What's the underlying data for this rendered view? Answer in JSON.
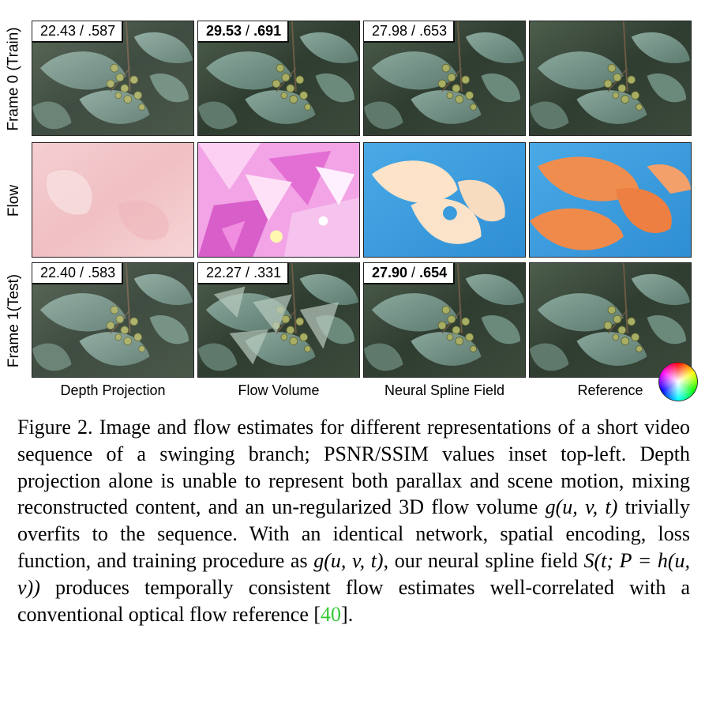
{
  "rows": [
    {
      "label": "Frame 0 (Train)"
    },
    {
      "label": "Flow"
    },
    {
      "label": "Frame 1(Test)"
    }
  ],
  "columns": [
    {
      "label": "Depth Projection"
    },
    {
      "label": "Flow Volume"
    },
    {
      "label": "Neural Spline Field"
    },
    {
      "label": "Reference"
    }
  ],
  "metrics": {
    "frame0": [
      {
        "psnr": "22.43",
        "sep": " / ",
        "ssim": ".587",
        "bold": false
      },
      {
        "psnr": "29.53",
        "sep": " / ",
        "ssim": ".691",
        "bold": true
      },
      {
        "psnr": "27.98",
        "sep": " / ",
        "ssim": ".653",
        "bold": false
      }
    ],
    "frame1": [
      {
        "psnr": "22.40",
        "sep": " / ",
        "ssim": ".583",
        "bold": false
      },
      {
        "psnr": "22.27",
        "sep": " / ",
        "ssim": ".331",
        "bold": false
      },
      {
        "psnr": "27.90",
        "sep": " / ",
        "ssim": ".654",
        "bold": true
      }
    ]
  },
  "colors": {
    "leaf": "#6f8f82",
    "background": "#3a4a3c",
    "berry": "#a8ae62",
    "flow_pink": "#f3c3c6",
    "flow_blue": "#3fa0de",
    "flow_orange": "#ee8a4a",
    "ref_green": "#37c837"
  },
  "caption": {
    "fig": "Figure 2.",
    "t1": " Image and flow estimates for different representations of a short video sequence of a swinging branch; PSNR/SSIM values inset top-left.  Depth projection alone is unable to represent both parallax and scene motion, mixing reconstructed content, and an un-regularized 3D flow volume ",
    "m1": "g(u, v, t)",
    "t2": " trivially overfits to the sequence. With an identical network, spatial encoding, loss function, and training procedure as ",
    "m2": "g(u, v, t)",
    "t3": ", our neural spline field ",
    "m3": "S(t; P = h(u, v))",
    "t4": " produces temporally consistent flow estimates well-correlated with a conventional optical flow reference [",
    "ref": "40",
    "t5": "]."
  }
}
